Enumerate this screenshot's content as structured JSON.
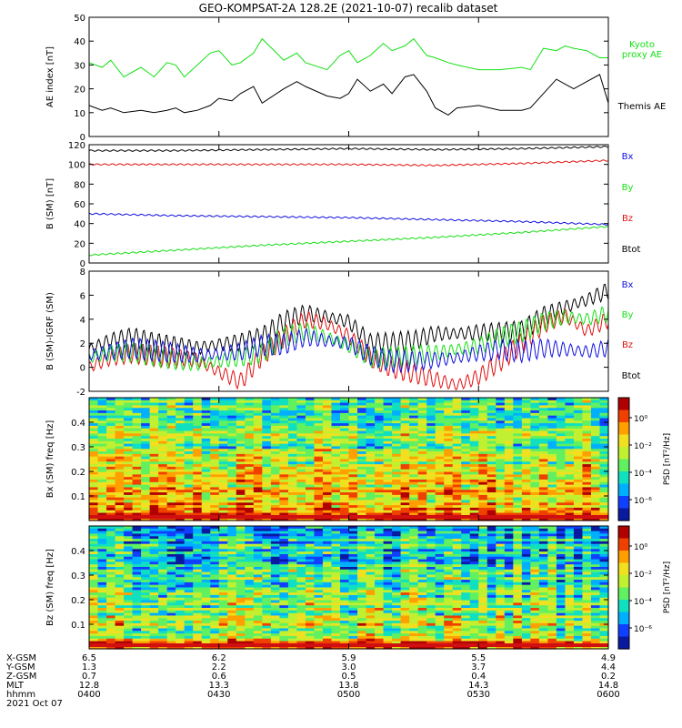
{
  "figure": {
    "title": "GEO-KOMPSAT-2A 128.2E (2021-10-07) recalib dataset"
  },
  "colors": {
    "black": "#000000",
    "red": "#e01010",
    "green": "#14e014",
    "blue": "#1010e0"
  },
  "chart_data": [
    {
      "type": "line",
      "panel": "ae",
      "ylabel": "AE index [nT]",
      "ylim": [
        0,
        50
      ],
      "yticks": [
        0,
        10,
        20,
        30,
        40,
        50
      ],
      "xlim": [
        0,
        120
      ],
      "series": [
        {
          "name": "Kyoto proxy AE",
          "color": "#14e014",
          "x": [
            0,
            3,
            5,
            8,
            12,
            15,
            18,
            20,
            22,
            25,
            28,
            30,
            33,
            35,
            38,
            40,
            45,
            48,
            50,
            55,
            58,
            60,
            62,
            65,
            68,
            70,
            73,
            75,
            78,
            80,
            83,
            85,
            90,
            95,
            100,
            102,
            105,
            108,
            110,
            112,
            115,
            118,
            120
          ],
          "values": [
            31,
            29,
            32,
            25,
            29,
            25,
            31,
            30,
            25,
            30,
            35,
            36,
            30,
            31,
            35,
            41,
            32,
            35,
            31,
            28,
            34,
            36,
            31,
            34,
            39,
            36,
            38,
            41,
            34,
            33,
            31,
            30,
            28,
            28,
            29,
            28,
            37,
            36,
            38,
            37,
            36,
            33,
            33
          ]
        },
        {
          "name": "Themis AE",
          "color": "#000000",
          "x": [
            0,
            3,
            5,
            8,
            12,
            15,
            18,
            20,
            22,
            25,
            28,
            30,
            33,
            35,
            38,
            40,
            45,
            48,
            50,
            55,
            58,
            60,
            62,
            65,
            68,
            70,
            73,
            75,
            78,
            80,
            83,
            85,
            90,
            95,
            100,
            102,
            105,
            108,
            110,
            112,
            115,
            118,
            120
          ],
          "values": [
            13,
            11,
            12,
            10,
            11,
            10,
            11,
            12,
            10,
            11,
            13,
            16,
            15,
            18,
            21,
            14,
            20,
            23,
            21,
            17,
            16,
            18,
            24,
            19,
            22,
            18,
            25,
            26,
            19,
            12,
            9,
            12,
            13,
            11,
            11,
            12,
            18,
            24,
            22,
            20,
            23,
            26,
            14
          ]
        }
      ]
    },
    {
      "type": "line",
      "panel": "b",
      "ylabel": "B (SM) [nT]",
      "ylim": [
        0,
        120
      ],
      "yticks": [
        0,
        20,
        40,
        60,
        80,
        100,
        120
      ],
      "xlim": [
        0,
        120
      ],
      "series": [
        {
          "name": "Btot",
          "color": "#000000",
          "x": [
            0,
            20,
            40,
            60,
            80,
            100,
            120
          ],
          "values": [
            114,
            114,
            115,
            116,
            115,
            116,
            118
          ]
        },
        {
          "name": "Bx",
          "color": "#e01010",
          "x": [
            0,
            20,
            40,
            60,
            80,
            100,
            120
          ],
          "values": [
            100,
            100,
            100,
            100,
            99,
            101,
            104
          ]
        },
        {
          "name": "Bz",
          "color": "#1010e0",
          "x": [
            0,
            20,
            40,
            60,
            80,
            100,
            120
          ],
          "values": [
            50,
            48,
            47,
            46,
            44,
            42,
            39
          ]
        },
        {
          "name": "By",
          "color": "#14e014",
          "x": [
            0,
            20,
            40,
            60,
            80,
            100,
            120
          ],
          "values": [
            8,
            13,
            18,
            22,
            26,
            31,
            37
          ]
        }
      ]
    },
    {
      "type": "line",
      "panel": "db",
      "ylabel": "B (SM)-IGRF (SM)",
      "ylim": [
        -2,
        8
      ],
      "yticks": [
        -2,
        0,
        2,
        4,
        6,
        8
      ],
      "xlim": [
        0,
        120
      ],
      "series": [
        {
          "name": "Btot",
          "color": "#000000",
          "x": [
            0,
            5,
            10,
            15,
            20,
            25,
            30,
            35,
            40,
            45,
            50,
            55,
            60,
            65,
            70,
            75,
            80,
            85,
            90,
            95,
            100,
            105,
            110,
            115,
            120
          ],
          "values": [
            1.5,
            2.2,
            2.5,
            2.0,
            1.8,
            1.6,
            1.9,
            2.1,
            2.5,
            3.8,
            4.5,
            4.2,
            3.8,
            2.0,
            2.0,
            2.2,
            2.8,
            2.8,
            2.9,
            2.9,
            3.0,
            4.3,
            5.0,
            5.6,
            6.4
          ]
        },
        {
          "name": "Bx",
          "color": "#e01010",
          "x": [
            0,
            5,
            10,
            15,
            20,
            25,
            30,
            35,
            40,
            45,
            50,
            55,
            60,
            65,
            70,
            75,
            80,
            85,
            90,
            95,
            100,
            105,
            110,
            115,
            120
          ],
          "values": [
            0,
            0.8,
            1.2,
            1.0,
            0.8,
            0.6,
            -0.4,
            -1.2,
            1.0,
            2.5,
            4.0,
            3.6,
            2.6,
            0.8,
            0,
            -0.5,
            -1.0,
            -1.5,
            -0.8,
            0.5,
            2.0,
            3.6,
            4.3,
            3.0,
            4.0
          ]
        },
        {
          "name": "By",
          "color": "#14e014",
          "x": [
            0,
            5,
            10,
            15,
            20,
            25,
            30,
            35,
            40,
            45,
            50,
            55,
            60,
            65,
            70,
            75,
            80,
            85,
            90,
            95,
            100,
            105,
            110,
            115,
            120
          ],
          "values": [
            0.8,
            1.2,
            1.3,
            1.0,
            0.6,
            0.3,
            0.5,
            0.8,
            1.2,
            2.5,
            3.0,
            2.5,
            1.8,
            0.8,
            0.8,
            1.0,
            1.2,
            1.5,
            1.8,
            2.5,
            3.0,
            3.8,
            4.2,
            4.0,
            4.5
          ]
        },
        {
          "name": "Bz",
          "color": "#1010e0",
          "x": [
            0,
            5,
            10,
            15,
            20,
            25,
            30,
            35,
            40,
            45,
            50,
            55,
            60,
            65,
            70,
            75,
            80,
            85,
            90,
            95,
            100,
            105,
            110,
            115,
            120
          ],
          "values": [
            1.0,
            1.3,
            1.6,
            1.4,
            1.2,
            1.0,
            1.1,
            1.3,
            1.8,
            1.9,
            2.5,
            2.2,
            2.0,
            1.0,
            0.5,
            0.5,
            0.6,
            0.8,
            1.2,
            1.5,
            1.3,
            1.6,
            1.5,
            1.3,
            1.6
          ]
        }
      ]
    },
    {
      "type": "heatmap",
      "panel": "bx-spec",
      "ylabel": "Bx (SM) freq [Hz]",
      "ylim": [
        0,
        0.5
      ],
      "yticks": [
        0.1,
        0.2,
        0.3,
        0.4
      ],
      "colorbar_label": "PSD [nT²/Hz]",
      "colorbar_ticks": [
        "10⁰",
        "10⁻²",
        "10⁻⁴",
        "10⁻⁶"
      ]
    },
    {
      "type": "heatmap",
      "panel": "bz-spec",
      "ylabel": "Bz (SM) freq [Hz]",
      "ylim": [
        0,
        0.5
      ],
      "yticks": [
        0.1,
        0.2,
        0.3,
        0.4
      ],
      "colorbar_label": "PSD [nT²/Hz]",
      "colorbar_ticks": [
        "10⁰",
        "10⁻²",
        "10⁻⁴",
        "10⁻⁶"
      ]
    }
  ],
  "ephemeris": {
    "labels": [
      "X-GSM",
      "Y-GSM",
      "Z-GSM",
      "MLT",
      "hhmm",
      "2021 Oct 07"
    ],
    "columns": [
      {
        "x": 0,
        "values": [
          "6.5",
          "1.3",
          "0.7",
          "12.8",
          "0400"
        ]
      },
      {
        "x": 30,
        "values": [
          "6.2",
          "2.2",
          "0.6",
          "13.3",
          "0430"
        ]
      },
      {
        "x": 60,
        "values": [
          "5.9",
          "3.0",
          "0.5",
          "13.8",
          "0500"
        ]
      },
      {
        "x": 90,
        "values": [
          "5.5",
          "3.7",
          "0.4",
          "14.3",
          "0530"
        ]
      },
      {
        "x": 120,
        "values": [
          "4.9",
          "4.4",
          "0.2",
          "14.8",
          "0600"
        ]
      }
    ]
  }
}
